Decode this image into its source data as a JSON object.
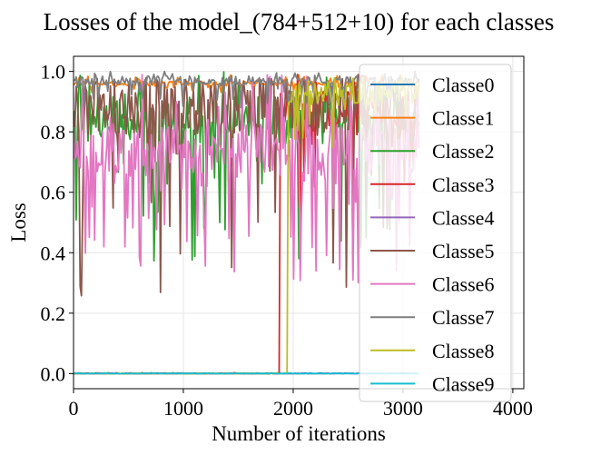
{
  "chart_data": {
    "type": "line",
    "title": "Losses of the model_(784+512+10) for each classes",
    "xlabel": "Number of iterations",
    "ylabel": "Loss",
    "xlim": [
      0,
      4100
    ],
    "ylim": [
      -0.05,
      1.05
    ],
    "xticks": [
      0,
      1000,
      2000,
      3000,
      4000
    ],
    "xtick_labels": [
      "0",
      "1000",
      "2000",
      "3000",
      "4000"
    ],
    "yticks": [
      0.0,
      0.2,
      0.4,
      0.6,
      0.8,
      1.0
    ],
    "ytick_labels": [
      "0.0",
      "0.2",
      "0.4",
      "0.6",
      "0.8",
      "1.0"
    ],
    "grid": true,
    "legend_position": "right",
    "x_end": 3150,
    "series": [
      {
        "name": "Classe0",
        "color": "#1f77b4",
        "level": 0.0,
        "range": [
          0.0,
          0.004
        ],
        "switch": null
      },
      {
        "name": "Classe1",
        "color": "#ff7f0e",
        "level": 0.96,
        "range": [
          0.93,
          0.99
        ],
        "switch": null
      },
      {
        "name": "Classe2",
        "color": "#2ca02c",
        "level": 0.84,
        "range": [
          0.35,
          1.0
        ],
        "switch": null
      },
      {
        "name": "Classe3",
        "color": "#d62728",
        "level": 0.0,
        "range": [
          0.0,
          0.005
        ],
        "switch": {
          "at": 1880,
          "level": 0.88,
          "range": [
            0.5,
            0.99
          ]
        }
      },
      {
        "name": "Classe4",
        "color": "#9467bd",
        "level": 0.0,
        "range": [
          0.0,
          0.004
        ],
        "switch": null
      },
      {
        "name": "Classe5",
        "color": "#8c564b",
        "level": 0.88,
        "range": [
          0.22,
          0.99
        ],
        "switch": null
      },
      {
        "name": "Classe6",
        "color": "#e377c2",
        "level": 0.74,
        "range": [
          0.29,
          0.99
        ],
        "switch": null
      },
      {
        "name": "Classe7",
        "color": "#7f7f7f",
        "level": 0.97,
        "range": [
          0.88,
          1.0
        ],
        "switch": null
      },
      {
        "name": "Classe8",
        "color": "#bcbd22",
        "level": 0.0,
        "range": [
          0.0,
          0.004
        ],
        "switch": {
          "at": 1950,
          "level": 0.93,
          "range": [
            0.68,
            0.99
          ]
        }
      },
      {
        "name": "Classe9",
        "color": "#17becf",
        "level": 0.0,
        "range": [
          0.0,
          0.004
        ],
        "switch": null
      }
    ]
  }
}
